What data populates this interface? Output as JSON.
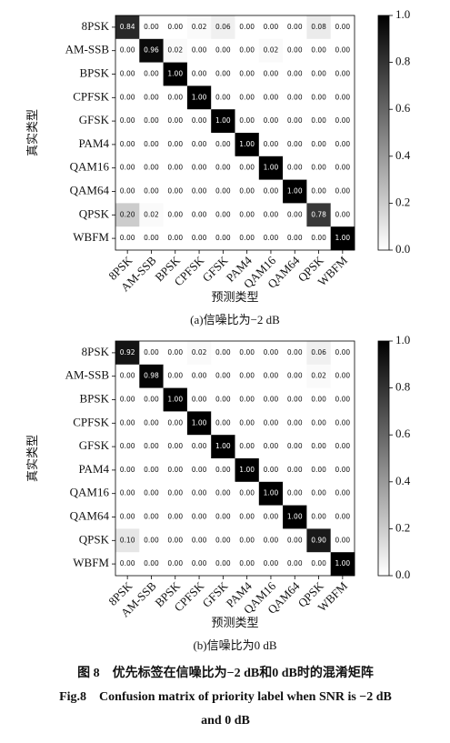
{
  "chart_data": [
    {
      "type": "heatmap",
      "categories": [
        "8PSK",
        "AM-SSB",
        "BPSK",
        "CPFSK",
        "GFSK",
        "PAM4",
        "QAM16",
        "QAM64",
        "QPSK",
        "WBFM"
      ],
      "x_label": "预测类型",
      "y_label": "真实类型",
      "caption": "(a)信噪比为−2 dB",
      "values": [
        [
          0.84,
          0,
          0,
          0.02,
          0.06,
          0,
          0,
          0,
          0.08,
          0
        ],
        [
          0,
          0.96,
          0.02,
          0,
          0,
          0,
          0.02,
          0,
          0,
          0
        ],
        [
          0,
          0,
          1,
          0,
          0,
          0,
          0,
          0,
          0,
          0
        ],
        [
          0,
          0,
          0,
          1,
          0,
          0,
          0,
          0,
          0,
          0
        ],
        [
          0,
          0,
          0,
          0,
          1,
          0,
          0,
          0,
          0,
          0
        ],
        [
          0,
          0,
          0,
          0,
          0,
          1,
          0,
          0,
          0,
          0
        ],
        [
          0,
          0,
          0,
          0,
          0,
          0,
          1,
          0,
          0,
          0
        ],
        [
          0,
          0,
          0,
          0,
          0,
          0,
          0,
          1,
          0,
          0
        ],
        [
          0.2,
          0.02,
          0,
          0,
          0,
          0,
          0,
          0,
          0.78,
          0
        ],
        [
          0,
          0,
          0,
          0,
          0,
          0,
          0,
          0,
          0,
          1
        ]
      ],
      "value_labels": [
        [
          "0.84",
          "0.00",
          "0.00",
          "0.02",
          "0.06",
          "0.00",
          "0.00",
          "0.00",
          "0.08",
          "0.00"
        ],
        [
          "0.00",
          "0.96",
          "0.02",
          "0.00",
          "0.00",
          "0.00",
          "0.02",
          "0.00",
          "0.00",
          "0.00"
        ],
        [
          "0.00",
          "0.00",
          "1.00",
          "0.00",
          "0.00",
          "0.00",
          "0.00",
          "0.00",
          "0.00",
          "0.00"
        ],
        [
          "0.00",
          "0.00",
          "0.00",
          "1.00",
          "0.00",
          "0.00",
          "0.00",
          "0.00",
          "0.00",
          "0.00"
        ],
        [
          "0.00",
          "0.00",
          "0.00",
          "0.00",
          "1.00",
          "0.00",
          "0.00",
          "0.00",
          "0.00",
          "0.00"
        ],
        [
          "0.00",
          "0.00",
          "0.00",
          "0.00",
          "0.00",
          "1.00",
          "0.00",
          "0.00",
          "0.00",
          "0.00"
        ],
        [
          "0.00",
          "0.00",
          "0.00",
          "0.00",
          "0.00",
          "0.00",
          "1.00",
          "0.00",
          "0.00",
          "0.00"
        ],
        [
          "0.00",
          "0.00",
          "0.00",
          "0.00",
          "0.00",
          "0.00",
          "0.00",
          "1.00",
          "0.00",
          "0.00"
        ],
        [
          "0.20",
          "0.02",
          "0.00",
          "0.00",
          "0.00",
          "0.00",
          "0.00",
          "0.00",
          "0.78",
          "0.00"
        ],
        [
          "0.00",
          "0.00",
          "0.00",
          "0.00",
          "0.00",
          "0.00",
          "0.00",
          "0.00",
          "0.00",
          "1.00"
        ]
      ],
      "cmap": "Greys",
      "zlim": [
        0,
        1
      ],
      "zticks": [
        {
          "value": 0,
          "label": "0.0"
        },
        {
          "value": 0.2,
          "label": "0.2"
        },
        {
          "value": 0.4,
          "label": "0.4"
        },
        {
          "value": 0.6,
          "label": "0.6"
        },
        {
          "value": 0.8,
          "label": "0.8"
        },
        {
          "value": 1,
          "label": "1.0"
        }
      ]
    },
    {
      "type": "heatmap",
      "categories": [
        "8PSK",
        "AM-SSB",
        "BPSK",
        "CPFSK",
        "GFSK",
        "PAM4",
        "QAM16",
        "QAM64",
        "QPSK",
        "WBFM"
      ],
      "x_label": "预测类型",
      "y_label": "真实类型",
      "caption": "(b)信噪比为0 dB",
      "values": [
        [
          0.92,
          0,
          0,
          0.02,
          0,
          0,
          0,
          0,
          0.06,
          0
        ],
        [
          0,
          0.98,
          0,
          0,
          0,
          0,
          0,
          0,
          0.02,
          0
        ],
        [
          0,
          0,
          1,
          0,
          0,
          0,
          0,
          0,
          0,
          0
        ],
        [
          0,
          0,
          0,
          1,
          0,
          0,
          0,
          0,
          0,
          0
        ],
        [
          0,
          0,
          0,
          0,
          1,
          0,
          0,
          0,
          0,
          0
        ],
        [
          0,
          0,
          0,
          0,
          0,
          1,
          0,
          0,
          0,
          0
        ],
        [
          0,
          0,
          0,
          0,
          0,
          0,
          1,
          0,
          0,
          0
        ],
        [
          0,
          0,
          0,
          0,
          0,
          0,
          0,
          1,
          0,
          0
        ],
        [
          0.1,
          0,
          0,
          0,
          0,
          0,
          0,
          0,
          0.9,
          0
        ],
        [
          0,
          0,
          0,
          0,
          0,
          0,
          0,
          0,
          0,
          1
        ]
      ],
      "value_labels": [
        [
          "0.92",
          "0.00",
          "0.00",
          "0.02",
          "0.00",
          "0.00",
          "0.00",
          "0.00",
          "0.06",
          "0.00"
        ],
        [
          "0.00",
          "0.98",
          "0.00",
          "0.00",
          "0.00",
          "0.00",
          "0.00",
          "0.00",
          "0.02",
          "0.00"
        ],
        [
          "0.00",
          "0.00",
          "1.00",
          "0.00",
          "0.00",
          "0.00",
          "0.00",
          "0.00",
          "0.00",
          "0.00"
        ],
        [
          "0.00",
          "0.00",
          "0.00",
          "1.00",
          "0.00",
          "0.00",
          "0.00",
          "0.00",
          "0.00",
          "0.00"
        ],
        [
          "0.00",
          "0.00",
          "0.00",
          "0.00",
          "1.00",
          "0.00",
          "0.00",
          "0.00",
          "0.00",
          "0.00"
        ],
        [
          "0.00",
          "0.00",
          "0.00",
          "0.00",
          "0.00",
          "1.00",
          "0.00",
          "0.00",
          "0.00",
          "0.00"
        ],
        [
          "0.00",
          "0.00",
          "0.00",
          "0.00",
          "0.00",
          "0.00",
          "1.00",
          "0.00",
          "0.00",
          "0.00"
        ],
        [
          "0.00",
          "0.00",
          "0.00",
          "0.00",
          "0.00",
          "0.00",
          "0.00",
          "1.00",
          "0.00",
          "0.00"
        ],
        [
          "0.10",
          "0.00",
          "0.00",
          "0.00",
          "0.00",
          "0.00",
          "0.00",
          "0.00",
          "0.90",
          "0.00"
        ],
        [
          "0.00",
          "0.00",
          "0.00",
          "0.00",
          "0.00",
          "0.00",
          "0.00",
          "0.00",
          "0.00",
          "1.00"
        ]
      ],
      "cmap": "Greys",
      "zlim": [
        0,
        1
      ],
      "zticks": [
        {
          "value": 0,
          "label": "0.0"
        },
        {
          "value": 0.2,
          "label": "0.2"
        },
        {
          "value": 0.4,
          "label": "0.4"
        },
        {
          "value": 0.6,
          "label": "0.6"
        },
        {
          "value": 0.8,
          "label": "0.8"
        },
        {
          "value": 1,
          "label": "1.0"
        }
      ]
    }
  ],
  "figure_caption": {
    "zh": "图 8　优先标签在信噪比为−2 dB和0 dB时的混淆矩阵",
    "en_line1": "Fig.8　Confusion matrix of priority label when SNR is −2 dB",
    "en_line2": "and 0 dB"
  }
}
